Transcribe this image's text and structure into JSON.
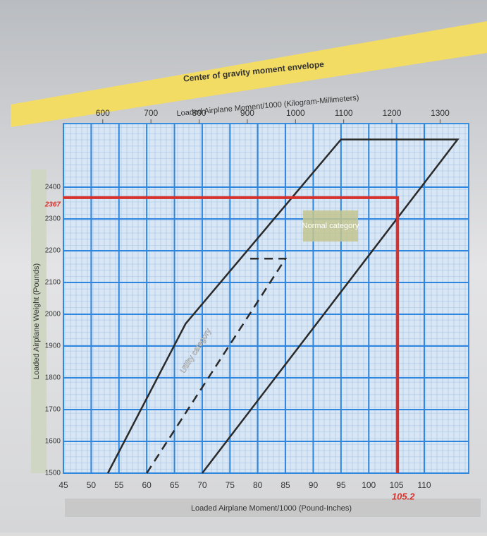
{
  "chart_data": {
    "type": "line",
    "title": "Center of gravity moment envelope",
    "x_label": "Loaded Airplane Moment/1000 (Pound-Inches)",
    "x2_label": "Loaded Airplane Moment/1000 (Kilogram-Millimeters)",
    "y_label": "Loaded Airplane Weight (Pounds)",
    "xlim": [
      45,
      118
    ],
    "xticks": [
      45,
      50,
      55,
      60,
      65,
      70,
      75,
      80,
      85,
      90,
      95,
      100,
      105,
      110
    ],
    "x2_per_x": 11.52,
    "x2ticks": [
      600,
      700,
      800,
      900,
      1000,
      1100,
      1200,
      1300
    ],
    "ylim": [
      1500,
      2600
    ],
    "yticks": [
      1500,
      1600,
      1700,
      1800,
      1900,
      2000,
      2100,
      2200,
      2300,
      2400
    ],
    "grid": true,
    "series": [
      {
        "name": "Normal category",
        "color": "#2a2a2a",
        "dashed": false,
        "x": [
          53,
          67,
          95,
          116,
          70
        ],
        "values": [
          1500,
          1970,
          2550,
          2550,
          1500
        ]
      },
      {
        "name": "Utility category",
        "color": "#2a2a2a",
        "dashed": true,
        "x": [
          60,
          85,
          78
        ],
        "values": [
          1500,
          2175,
          2175
        ]
      }
    ],
    "reference": {
      "color": "#d8302a",
      "weight": 2367,
      "moment": 105.2
    }
  }
}
